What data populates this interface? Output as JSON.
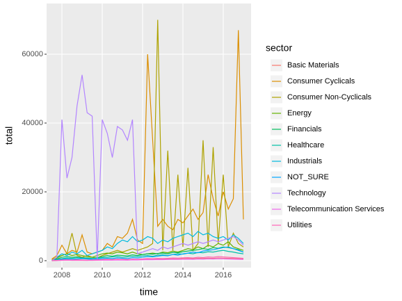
{
  "chart_data": {
    "type": "line",
    "xlabel": "time",
    "ylabel": "total",
    "legend_title": "sector",
    "x": [
      2007.5,
      2007.75,
      2008,
      2008.25,
      2008.5,
      2008.75,
      2009,
      2009.25,
      2009.5,
      2009.75,
      2010,
      2010.25,
      2010.5,
      2010.75,
      2011,
      2011.25,
      2011.5,
      2011.75,
      2012,
      2012.25,
      2012.5,
      2012.75,
      2013,
      2013.25,
      2013.5,
      2013.75,
      2014,
      2014.25,
      2014.5,
      2014.75,
      2015,
      2015.25,
      2015.5,
      2015.75,
      2016,
      2016.25,
      2016.5,
      2016.75,
      2017
    ],
    "xlim": [
      2007.24,
      2017.38
    ],
    "xticks": [
      2008,
      2010,
      2012,
      2014,
      2016
    ],
    "ylim": [
      -2020,
      74750
    ],
    "yticks": [
      0,
      20000,
      40000,
      60000
    ],
    "grid": true,
    "legend": "right",
    "series": [
      {
        "name": "Basic Materials",
        "color": "#F8766D",
        "values": [
          0,
          100,
          300,
          200,
          300,
          250,
          200,
          150,
          200,
          250,
          300,
          350,
          300,
          400,
          350,
          300,
          400,
          350,
          400,
          450,
          400,
          500,
          450,
          500,
          550,
          500,
          600,
          650,
          600,
          700,
          650,
          750,
          700,
          800,
          750,
          700,
          650,
          600,
          500
        ]
      },
      {
        "name": "Consumer Cyclicals",
        "color": "#DB8E00",
        "values": [
          500,
          1500,
          4500,
          2000,
          3000,
          2500,
          7500,
          2500,
          2000,
          2500,
          3000,
          5000,
          4000,
          7000,
          6500,
          8000,
          12000,
          6000,
          5000,
          60000,
          35000,
          10000,
          12000,
          10000,
          9000,
          12000,
          11000,
          13000,
          15000,
          12000,
          14000,
          25000,
          18000,
          13000,
          20000,
          15000,
          18000,
          67000,
          12000
        ]
      },
      {
        "name": "Consumer Non-Cyclicals",
        "color": "#AEA200",
        "values": [
          300,
          1000,
          1500,
          2000,
          8000,
          1500,
          1000,
          1500,
          1000,
          800,
          1500,
          2000,
          2500,
          3000,
          2500,
          3000,
          3500,
          3000,
          3500,
          4000,
          5000,
          70000,
          3000,
          32000,
          3000,
          25000,
          4000,
          27000,
          3000,
          5000,
          35000,
          4000,
          33000,
          5000,
          25000,
          4000,
          8000,
          5000,
          4000
        ]
      },
      {
        "name": "Energy",
        "color": "#64B200",
        "values": [
          0,
          800,
          1500,
          2000,
          1500,
          1800,
          1500,
          1200,
          1000,
          1500,
          2000,
          2200,
          2000,
          2500,
          2300,
          2000,
          2500,
          2000,
          1800,
          2000,
          2200,
          2000,
          2500,
          2300,
          2800,
          2500,
          3000,
          3500,
          3200,
          4000,
          3500,
          4500,
          4000,
          5000,
          4500,
          5500,
          4000,
          3500,
          3000
        ]
      },
      {
        "name": "Financials",
        "color": "#00BD5C",
        "values": [
          0,
          500,
          1000,
          1200,
          1000,
          1100,
          900,
          800,
          700,
          900,
          1200,
          1500,
          1300,
          1600,
          1500,
          1400,
          1700,
          1500,
          1800,
          2000,
          1900,
          2100,
          2200,
          2000,
          2400,
          2300,
          2600,
          2800,
          3000,
          3200,
          3500,
          3300,
          3800,
          3600,
          4000,
          3800,
          3500,
          3200,
          2500
        ]
      },
      {
        "name": "Healthcare",
        "color": "#00C1A7",
        "values": [
          0,
          300,
          600,
          800,
          700,
          900,
          800,
          600,
          700,
          800,
          900,
          1000,
          1100,
          1200,
          1000,
          1100,
          1300,
          1200,
          1400,
          1500,
          1300,
          1600,
          1700,
          1500,
          1800,
          2000,
          1900,
          2200,
          2000,
          2400,
          2300,
          2600,
          2500,
          2800,
          3000,
          2700,
          2500,
          2200,
          2000
        ]
      },
      {
        "name": "Industrials",
        "color": "#00BADE",
        "values": [
          0,
          1000,
          2000,
          1500,
          2500,
          2000,
          3000,
          1500,
          2000,
          2500,
          3000,
          4000,
          3500,
          5000,
          6000,
          5500,
          7000,
          5500,
          6000,
          7000,
          6500,
          5000,
          6000,
          5500,
          6500,
          7000,
          7500,
          8000,
          7000,
          8500,
          7500,
          8000,
          7000,
          6500,
          7000,
          6000,
          7500,
          6500,
          5000
        ]
      },
      {
        "name": "NOT_SURE",
        "color": "#00A6FF",
        "values": [
          0,
          200,
          400,
          500,
          400,
          500,
          600,
          500,
          400,
          500,
          600,
          700,
          600,
          800,
          700,
          600,
          900,
          800,
          1000,
          1200,
          1100,
          1300,
          1500,
          1400,
          1800,
          1600,
          2000,
          2200,
          2500,
          2300,
          2800,
          3000,
          3200,
          3500,
          3800,
          4000,
          3500,
          3000,
          2500
        ]
      },
      {
        "name": "Technology",
        "color": "#B385FF",
        "values": [
          0,
          1000,
          41000,
          24000,
          30000,
          45000,
          54000,
          43000,
          42000,
          500,
          41000,
          37000,
          30000,
          39000,
          38000,
          35000,
          41000,
          2000,
          2500,
          3000,
          3500,
          3000,
          4000,
          3500,
          4000,
          4500,
          5000,
          4500,
          5000,
          5500,
          5000,
          5500,
          6000,
          5500,
          6000,
          6500,
          7000,
          6000,
          4500
        ]
      },
      {
        "name": "Telecommunication Services",
        "color": "#EF67EB",
        "values": [
          0,
          50,
          100,
          150,
          100,
          120,
          100,
          80,
          100,
          120,
          150,
          180,
          150,
          200,
          180,
          150,
          220,
          200,
          250,
          300,
          280,
          320,
          300,
          350,
          400,
          380,
          420,
          450,
          400,
          500,
          450,
          550,
          500,
          600,
          550,
          500,
          450,
          400,
          350
        ]
      },
      {
        "name": "Utilities",
        "color": "#FF63B6",
        "values": [
          0,
          100,
          200,
          250,
          200,
          220,
          180,
          160,
          200,
          250,
          300,
          350,
          300,
          400,
          350,
          300,
          450,
          400,
          500,
          600,
          550,
          650,
          600,
          700,
          800,
          750,
          850,
          900,
          800,
          1000,
          900,
          1100,
          1000,
          1200,
          1100,
          1000,
          900,
          800,
          700
        ]
      }
    ]
  }
}
